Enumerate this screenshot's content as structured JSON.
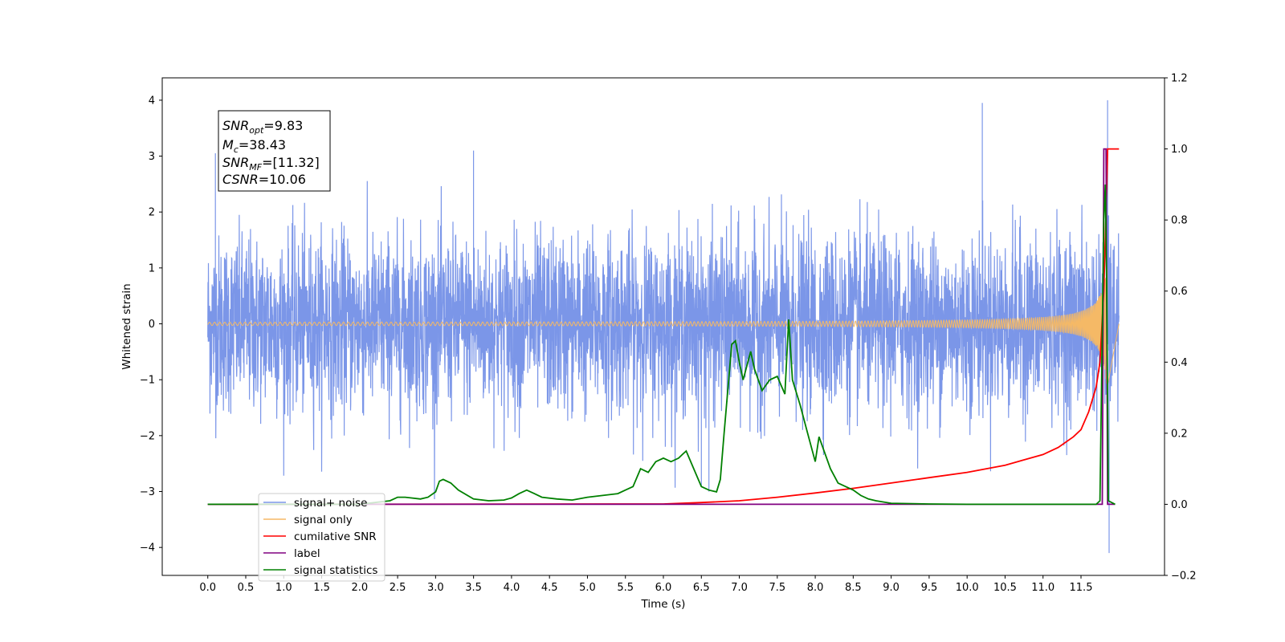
{
  "chart_data": {
    "type": "line",
    "xlabel": "Time (s)",
    "ylabel": "Whitened strain",
    "x_ticks": [
      "0.0",
      "0.5",
      "1.0",
      "1.5",
      "2.0",
      "2.5",
      "3.0",
      "3.5",
      "4.0",
      "4.5",
      "5.0",
      "5.5",
      "6.0",
      "6.5",
      "7.0",
      "7.5",
      "8.0",
      "8.5",
      "9.0",
      "9.5",
      "10.0",
      "10.5",
      "11.0",
      "11.5"
    ],
    "y_left_ticks": [
      "−4",
      "−3",
      "−2",
      "−1",
      "0",
      "1",
      "2",
      "3",
      "4"
    ],
    "y_right_ticks": [
      "−0.2",
      "0.0",
      "0.2",
      "0.4",
      "0.6",
      "0.8",
      "1.0",
      "1.2"
    ],
    "xlim": [
      -0.6,
      12.6
    ],
    "ylim_left": [
      -4.5,
      4.4
    ],
    "ylim_right": [
      -0.2,
      1.2
    ],
    "x_range": [
      0.0,
      12.0
    ],
    "grid": false,
    "legend_position": "lower-left",
    "annotation": {
      "snr_opt": {
        "base": "SNR",
        "sub": "opt",
        "value": "=9.83"
      },
      "mc": {
        "base": "M",
        "sub": "c",
        "value": "=38.43"
      },
      "snr_mf": {
        "base": "SNR",
        "sub": "MF",
        "value": "=[11.32]"
      },
      "csnr": {
        "base": "CSNR",
        "value": "=10.06"
      }
    },
    "series": [
      {
        "name": "signal+ noise",
        "color": "#7b96e8",
        "axis": "left",
        "description_values": {
          "std": 0.75,
          "max": 4.0,
          "min": -4.1
        }
      },
      {
        "name": "signal only",
        "color": "#f5b966",
        "axis": "left",
        "envelope": {
          "t0": 11.85,
          "amp_end": 1.5
        }
      },
      {
        "name": "cumilative SNR",
        "color": "#ff0000",
        "axis": "right",
        "points": [
          [
            0.0,
            0.0
          ],
          [
            6.0,
            0.001
          ],
          [
            6.5,
            0.005
          ],
          [
            7.0,
            0.01
          ],
          [
            7.5,
            0.02
          ],
          [
            8.0,
            0.032
          ],
          [
            8.5,
            0.045
          ],
          [
            9.0,
            0.06
          ],
          [
            9.5,
            0.075
          ],
          [
            10.0,
            0.09
          ],
          [
            10.5,
            0.11
          ],
          [
            11.0,
            0.14
          ],
          [
            11.2,
            0.16
          ],
          [
            11.4,
            0.19
          ],
          [
            11.5,
            0.21
          ],
          [
            11.6,
            0.26
          ],
          [
            11.7,
            0.33
          ],
          [
            11.75,
            0.4
          ],
          [
            11.8,
            0.6
          ],
          [
            11.84,
            0.9
          ],
          [
            11.85,
            1.0
          ],
          [
            12.0,
            1.0
          ]
        ]
      },
      {
        "name": "label",
        "color": "#800080",
        "axis": "right",
        "points": [
          [
            0.0,
            0.0
          ],
          [
            11.78,
            0.0
          ],
          [
            11.8,
            1.0
          ],
          [
            11.83,
            1.0
          ],
          [
            11.85,
            0.0
          ],
          [
            11.95,
            0.0
          ]
        ]
      },
      {
        "name": "signal statistics",
        "color": "#008000",
        "axis": "right",
        "points": [
          [
            0.0,
            0.0
          ],
          [
            1.0,
            0.0
          ],
          [
            2.0,
            0.0
          ],
          [
            2.2,
            0.005
          ],
          [
            2.4,
            0.01
          ],
          [
            2.5,
            0.02
          ],
          [
            2.6,
            0.02
          ],
          [
            2.8,
            0.015
          ],
          [
            2.9,
            0.02
          ],
          [
            3.0,
            0.035
          ],
          [
            3.05,
            0.065
          ],
          [
            3.1,
            0.07
          ],
          [
            3.2,
            0.06
          ],
          [
            3.3,
            0.04
          ],
          [
            3.5,
            0.015
          ],
          [
            3.7,
            0.01
          ],
          [
            3.9,
            0.012
          ],
          [
            4.0,
            0.018
          ],
          [
            4.1,
            0.03
          ],
          [
            4.2,
            0.04
          ],
          [
            4.3,
            0.03
          ],
          [
            4.4,
            0.02
          ],
          [
            4.6,
            0.015
          ],
          [
            4.8,
            0.012
          ],
          [
            5.0,
            0.02
          ],
          [
            5.2,
            0.025
          ],
          [
            5.4,
            0.03
          ],
          [
            5.5,
            0.04
          ],
          [
            5.6,
            0.05
          ],
          [
            5.7,
            0.1
          ],
          [
            5.8,
            0.09
          ],
          [
            5.9,
            0.12
          ],
          [
            6.0,
            0.13
          ],
          [
            6.1,
            0.12
          ],
          [
            6.2,
            0.13
          ],
          [
            6.25,
            0.14
          ],
          [
            6.3,
            0.15
          ],
          [
            6.4,
            0.1
          ],
          [
            6.5,
            0.05
          ],
          [
            6.6,
            0.04
          ],
          [
            6.7,
            0.035
          ],
          [
            6.75,
            0.07
          ],
          [
            6.8,
            0.2
          ],
          [
            6.9,
            0.45
          ],
          [
            6.95,
            0.46
          ],
          [
            7.0,
            0.4
          ],
          [
            7.05,
            0.35
          ],
          [
            7.15,
            0.43
          ],
          [
            7.2,
            0.38
          ],
          [
            7.3,
            0.32
          ],
          [
            7.4,
            0.35
          ],
          [
            7.5,
            0.36
          ],
          [
            7.6,
            0.31
          ],
          [
            7.65,
            0.52
          ],
          [
            7.7,
            0.35
          ],
          [
            7.8,
            0.28
          ],
          [
            7.9,
            0.2
          ],
          [
            8.0,
            0.12
          ],
          [
            8.05,
            0.19
          ],
          [
            8.1,
            0.16
          ],
          [
            8.2,
            0.1
          ],
          [
            8.3,
            0.06
          ],
          [
            8.4,
            0.05
          ],
          [
            8.5,
            0.04
          ],
          [
            8.6,
            0.025
          ],
          [
            8.7,
            0.015
          ],
          [
            8.8,
            0.01
          ],
          [
            9.0,
            0.003
          ],
          [
            9.5,
            0.001
          ],
          [
            10.0,
            0.0
          ],
          [
            11.7,
            0.0
          ],
          [
            11.75,
            0.01
          ],
          [
            11.8,
            0.8
          ],
          [
            11.82,
            0.9
          ],
          [
            11.84,
            0.6
          ],
          [
            11.86,
            0.01
          ],
          [
            11.95,
            0.0
          ]
        ]
      }
    ]
  }
}
